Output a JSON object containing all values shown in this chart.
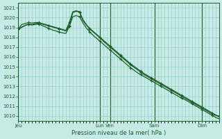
{
  "xlabel": "Pression niveau de la mer( hPa )",
  "ylim": [
    1009.5,
    1021.5
  ],
  "yticks": [
    1010,
    1011,
    1012,
    1013,
    1014,
    1015,
    1016,
    1017,
    1018,
    1019,
    1020,
    1021
  ],
  "bg_color": "#c6ebe6",
  "grid_color": "#88c8c0",
  "line_color": "#1a5c28",
  "day_labels": [
    "Jeu",
    "Lun",
    "Ven",
    "Sam",
    "Dim"
  ],
  "n_points": 60,
  "s1": [
    1018.8,
    1019.0,
    1019.2,
    1019.35,
    1019.3,
    1019.4,
    1019.45,
    1019.35,
    1019.25,
    1019.15,
    1019.05,
    1018.95,
    1018.85,
    1018.75,
    1018.65,
    1019.2,
    1020.5,
    1020.65,
    1020.55,
    1019.7,
    1019.25,
    1018.85,
    1018.55,
    1018.25,
    1017.95,
    1017.6,
    1017.3,
    1017.0,
    1016.7,
    1016.4,
    1016.1,
    1015.8,
    1015.5,
    1015.2,
    1014.95,
    1014.7,
    1014.45,
    1014.2,
    1014.0,
    1013.8,
    1013.6,
    1013.4,
    1013.2,
    1013.0,
    1012.8,
    1012.6,
    1012.4,
    1012.2,
    1012.0,
    1011.8,
    1011.6,
    1011.4,
    1011.2,
    1011.0,
    1010.8,
    1010.6,
    1010.4,
    1010.2,
    1010.05,
    1010.0
  ],
  "s2": [
    1018.85,
    1019.3,
    1019.4,
    1019.5,
    1019.45,
    1019.5,
    1019.5,
    1019.4,
    1019.3,
    1019.2,
    1019.1,
    1019.0,
    1018.9,
    1018.8,
    1018.7,
    1019.5,
    1020.6,
    1020.7,
    1020.6,
    1019.8,
    1019.3,
    1018.9,
    1018.6,
    1018.3,
    1018.0,
    1017.7,
    1017.4,
    1017.1,
    1016.8,
    1016.5,
    1016.2,
    1015.9,
    1015.6,
    1015.3,
    1015.05,
    1014.8,
    1014.55,
    1014.3,
    1014.1,
    1013.9,
    1013.7,
    1013.5,
    1013.3,
    1013.1,
    1012.9,
    1012.7,
    1012.5,
    1012.3,
    1012.1,
    1011.9,
    1011.7,
    1011.5,
    1011.3,
    1011.1,
    1010.9,
    1010.7,
    1010.5,
    1010.3,
    1010.1,
    1009.9
  ],
  "s3": [
    1018.8,
    1019.05,
    1019.2,
    1019.3,
    1019.25,
    1019.3,
    1019.35,
    1019.2,
    1019.05,
    1018.9,
    1018.75,
    1018.65,
    1018.55,
    1018.45,
    1018.4,
    1019.1,
    1020.1,
    1020.2,
    1020.1,
    1019.45,
    1018.95,
    1018.55,
    1018.2,
    1017.9,
    1017.6,
    1017.3,
    1017.0,
    1016.7,
    1016.4,
    1016.1,
    1015.8,
    1015.5,
    1015.2,
    1014.9,
    1014.65,
    1014.4,
    1014.2,
    1014.0,
    1013.8,
    1013.6,
    1013.4,
    1013.2,
    1013.0,
    1012.8,
    1012.6,
    1012.4,
    1012.2,
    1012.0,
    1011.8,
    1011.65,
    1011.45,
    1011.25,
    1011.05,
    1010.85,
    1010.65,
    1010.45,
    1010.25,
    1010.05,
    1009.85,
    1009.7
  ]
}
